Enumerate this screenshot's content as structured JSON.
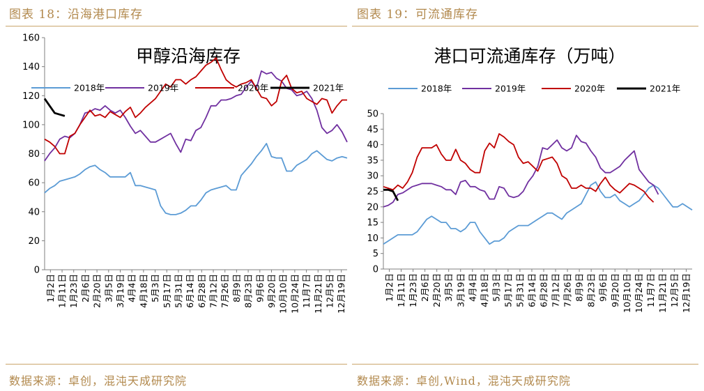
{
  "left_panel": {
    "caption": "图表 18：沿海港口库存",
    "source": "数据来源：卓创，混沌天成研究院"
  },
  "right_panel": {
    "caption": "图表 19：可流通库存",
    "source": "数据来源：卓创,Wind，混沌天成研究院"
  },
  "chart_data": [
    {
      "type": "line",
      "title": "甲醇沿海库存",
      "xlabel": "",
      "ylabel": "",
      "ylim": [
        0,
        160
      ],
      "yticks": [
        0,
        20,
        40,
        60,
        80,
        100,
        120,
        140,
        160
      ],
      "grid": false,
      "legend_position": "top",
      "x_tick_labels": [
        "1月2日",
        "1月11日",
        "1月23日",
        "2月6日",
        "2月20日",
        "3月5日",
        "3月19日",
        "4月4日",
        "4月18日",
        "5月3日",
        "5月17日",
        "5月31日",
        "6月14日",
        "6月28日",
        "7月12日",
        "7月26日",
        "8月9日",
        "8月23日",
        "9月6日",
        "9月20日",
        "10月10日",
        "10月24日",
        "11月7日",
        "11月21日",
        "12月5日",
        "12月19日"
      ],
      "series": [
        {
          "name": "2018年",
          "color": "#5b9bd5",
          "values": [
            53,
            56,
            58,
            61,
            62,
            63,
            64,
            66,
            69,
            71,
            72,
            69,
            67,
            64,
            64,
            64,
            64,
            67,
            58,
            58,
            57,
            56,
            55,
            44,
            39,
            38,
            38,
            39,
            41,
            44,
            44,
            48,
            53,
            55,
            56,
            57,
            58,
            55,
            55,
            65,
            69,
            73,
            78,
            82,
            87,
            78,
            77,
            77,
            68,
            68,
            72,
            74,
            76,
            80,
            82,
            79,
            76,
            75,
            77,
            78,
            77
          ]
        },
        {
          "name": "2019年",
          "color": "#7030a0",
          "values": [
            75,
            80,
            84,
            90,
            92,
            91,
            94,
            100,
            108,
            109,
            111,
            110,
            113,
            110,
            108,
            110,
            105,
            99,
            94,
            96,
            92,
            88,
            88,
            90,
            92,
            94,
            87,
            81,
            90,
            89,
            96,
            98,
            105,
            113,
            113,
            117,
            117,
            118,
            120,
            121,
            126,
            130,
            125,
            137,
            135,
            136,
            132,
            130,
            125,
            124,
            120,
            121,
            123,
            118,
            110,
            98,
            94,
            96,
            100,
            95,
            88
          ]
        },
        {
          "name": "2020年",
          "color": "#c00000",
          "values": [
            90,
            88,
            85,
            80,
            80,
            92,
            94,
            100,
            105,
            110,
            106,
            107,
            105,
            109,
            107,
            105,
            109,
            112,
            105,
            108,
            112,
            115,
            118,
            123,
            128,
            126,
            131,
            131,
            128,
            131,
            133,
            137,
            141,
            143,
            146,
            138,
            131,
            128,
            126,
            128,
            129,
            131,
            125,
            119,
            118,
            113,
            116,
            130,
            134,
            125,
            122,
            123,
            118,
            116,
            114,
            118,
            117,
            108,
            113,
            117,
            117
          ]
        },
        {
          "name": "2021年",
          "color": "#000000",
          "values": [
            118,
            113,
            108,
            107,
            106
          ]
        }
      ]
    },
    {
      "type": "line",
      "title": "港口可流通库存（万吨）",
      "xlabel": "",
      "ylabel": "",
      "ylim": [
        0,
        50
      ],
      "yticks": [
        0,
        5,
        10,
        15,
        20,
        25,
        30,
        35,
        40,
        45,
        50
      ],
      "grid": false,
      "legend_position": "top",
      "x_tick_labels": [
        "1月2日",
        "1月11日",
        "1月23日",
        "2月6日",
        "2月20日",
        "3月5日",
        "3月19日",
        "4月4日",
        "4月18日",
        "5月3日",
        "5月17日",
        "5月31日",
        "6月14日",
        "6月28日",
        "7月12日",
        "7月26日",
        "8月9日",
        "8月23日",
        "9月6日",
        "9月20日",
        "10月10日",
        "10月24日",
        "11月7日",
        "11月21日",
        "12月5日",
        "12月19日"
      ],
      "series": [
        {
          "name": "2018年",
          "color": "#5b9bd5",
          "values": [
            8,
            9,
            10,
            11,
            11,
            11,
            11,
            12,
            14,
            16,
            17,
            16,
            15,
            15,
            13,
            13,
            12,
            13,
            15,
            15,
            12,
            10,
            8,
            9,
            9,
            10,
            12,
            13,
            14,
            14,
            14,
            15,
            16,
            17,
            18,
            18,
            17,
            16,
            18,
            19,
            20,
            21,
            24,
            27,
            28,
            25,
            23,
            23,
            24,
            22,
            21,
            20,
            21,
            22,
            24,
            26,
            27,
            26,
            24,
            22,
            20,
            20,
            21,
            20,
            19
          ]
        },
        {
          "name": "2019年",
          "color": "#7030a0",
          "values": [
            20,
            20.5,
            21.5,
            24,
            24.5,
            25.5,
            26.5,
            27,
            27.5,
            27.5,
            27.5,
            27,
            26.5,
            25.5,
            25.5,
            24,
            28,
            28.5,
            26.5,
            26.5,
            25.5,
            25,
            22.5,
            22.5,
            26.5,
            26,
            23.5,
            23,
            23.5,
            25,
            28,
            30,
            33,
            39,
            38.5,
            40,
            41.5,
            39,
            38,
            39,
            43,
            41,
            40.5,
            38,
            36,
            32.5,
            31,
            31,
            32,
            33,
            35,
            36.5,
            38,
            32,
            30,
            28,
            27,
            24
          ]
        },
        {
          "name": "2020年",
          "color": "#c00000",
          "values": [
            26.5,
            26,
            25.5,
            27,
            26,
            28,
            31,
            36,
            39,
            39,
            39,
            40,
            37,
            35,
            35,
            38.5,
            35,
            34,
            32,
            31,
            31,
            38,
            40.5,
            39,
            43.5,
            42.5,
            41,
            40,
            36,
            34,
            34.5,
            33,
            31.5,
            35,
            35.5,
            36,
            34,
            30,
            29,
            26,
            26,
            27,
            26,
            26,
            25,
            27.5,
            29.5,
            27,
            25.5,
            24.5,
            26,
            27.5,
            27,
            26,
            25,
            23,
            21.5
          ]
        },
        {
          "name": "2021年",
          "color": "#000000",
          "values": [
            25.5,
            25.5,
            25,
            22
          ]
        }
      ]
    }
  ]
}
